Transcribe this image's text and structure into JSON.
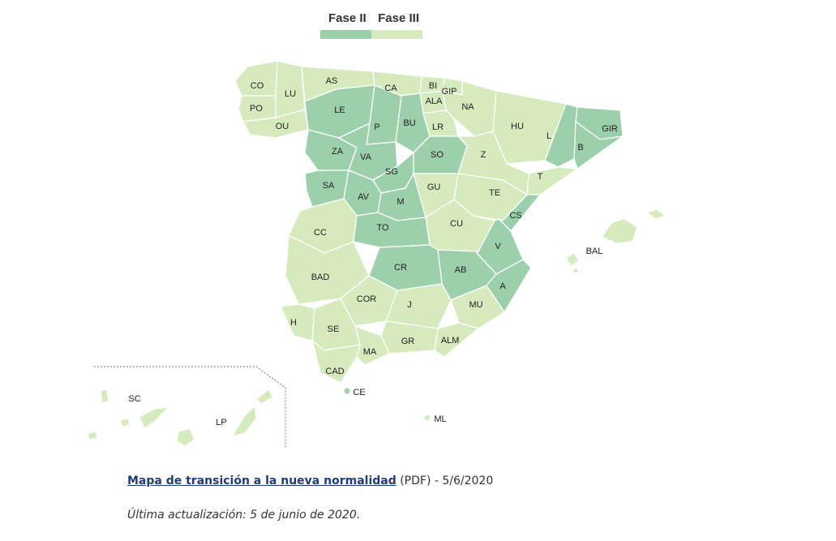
{
  "legend": {
    "phase2_label": "Fase II",
    "phase3_label": "Fase III",
    "phase2_color": "#9ccfab",
    "phase3_color": "#d5eabd"
  },
  "provinces": [
    {
      "code": "CO",
      "phase": 3
    },
    {
      "code": "LU",
      "phase": 3
    },
    {
      "code": "AS",
      "phase": 3
    },
    {
      "code": "CA",
      "phase": 3
    },
    {
      "code": "BI",
      "phase": 3
    },
    {
      "code": "GIP",
      "phase": 3
    },
    {
      "code": "ALA",
      "phase": 3
    },
    {
      "code": "NA",
      "phase": 3
    },
    {
      "code": "PO",
      "phase": 3
    },
    {
      "code": "OU",
      "phase": 3
    },
    {
      "code": "LE",
      "phase": 2
    },
    {
      "code": "P",
      "phase": 2
    },
    {
      "code": "BU",
      "phase": 2
    },
    {
      "code": "LR",
      "phase": 3
    },
    {
      "code": "HU",
      "phase": 3
    },
    {
      "code": "L",
      "phase": 2
    },
    {
      "code": "GIR",
      "phase": 2
    },
    {
      "code": "B",
      "phase": 2
    },
    {
      "code": "ZA",
      "phase": 2
    },
    {
      "code": "VA",
      "phase": 2
    },
    {
      "code": "SO",
      "phase": 2
    },
    {
      "code": "Z",
      "phase": 3
    },
    {
      "code": "SG",
      "phase": 2
    },
    {
      "code": "T",
      "phase": 3
    },
    {
      "code": "SA",
      "phase": 2
    },
    {
      "code": "AV",
      "phase": 2
    },
    {
      "code": "M",
      "phase": 2
    },
    {
      "code": "GU",
      "phase": 3
    },
    {
      "code": "TE",
      "phase": 3
    },
    {
      "code": "CS",
      "phase": 2
    },
    {
      "code": "CC",
      "phase": 3
    },
    {
      "code": "TO",
      "phase": 2
    },
    {
      "code": "CU",
      "phase": 3
    },
    {
      "code": "BAL",
      "phase": 3
    },
    {
      "code": "V",
      "phase": 2
    },
    {
      "code": "CR",
      "phase": 2
    },
    {
      "code": "AB",
      "phase": 2
    },
    {
      "code": "BAD",
      "phase": 3
    },
    {
      "code": "A",
      "phase": 2
    },
    {
      "code": "COR",
      "phase": 3
    },
    {
      "code": "J",
      "phase": 3
    },
    {
      "code": "MU",
      "phase": 3
    },
    {
      "code": "H",
      "phase": 3
    },
    {
      "code": "SE",
      "phase": 3
    },
    {
      "code": "GR",
      "phase": 3
    },
    {
      "code": "ALM",
      "phase": 3
    },
    {
      "code": "MA",
      "phase": 3
    },
    {
      "code": "CAD",
      "phase": 3
    },
    {
      "code": "CE",
      "phase": 2
    },
    {
      "code": "SC",
      "phase": 3
    },
    {
      "code": "LP",
      "phase": 3
    },
    {
      "code": "ML",
      "phase": 3
    }
  ],
  "footer": {
    "link_text": "Mapa de transición a la nueva normalidad",
    "link_suffix": " (PDF) - 5/6/2020",
    "updated": "Última actualización: 5 de junio de 2020."
  }
}
